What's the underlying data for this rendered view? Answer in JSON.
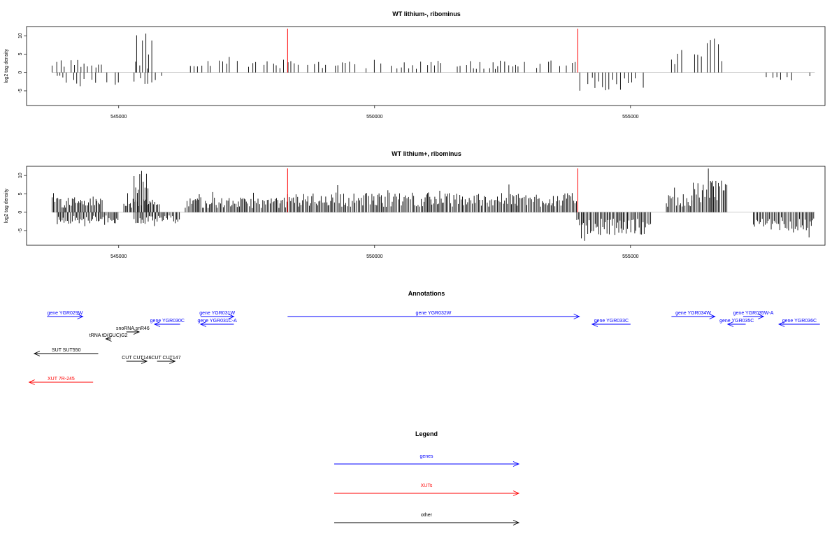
{
  "chart_data": [
    {
      "type": "bar",
      "title": "WT lithium-, ribominus",
      "ylabel": "log2 tag density",
      "xlim": [
        543200,
        558800
      ],
      "ylim": [
        -9,
        12.5
      ],
      "x_ticks": [
        545000,
        550000,
        555000
      ],
      "x_tick_labels": [
        "545000",
        "550000",
        "555000"
      ],
      "y_ticks": [
        -5,
        0,
        5,
        10
      ],
      "y_tick_labels": [
        "-5",
        "0",
        "5",
        "10"
      ],
      "markers": [
        548300,
        553970
      ],
      "marker_color": "#ff0000",
      "bar_color": "#000000",
      "segments": [
        {
          "start": 543700,
          "end": 544700,
          "level": 3,
          "strand": "plus"
        },
        {
          "start": 543800,
          "end": 545000,
          "level": 2.5,
          "strand": "minus"
        },
        {
          "start": 545350,
          "end": 545650,
          "level": 9,
          "strand": "plus"
        },
        {
          "start": 545200,
          "end": 545700,
          "level": 3,
          "strand": "plus"
        },
        {
          "start": 545300,
          "end": 545900,
          "level": 2.5,
          "strand": "minus"
        },
        {
          "start": 546400,
          "end": 553950,
          "level": 2.6,
          "strand": "plus"
        },
        {
          "start": 553950,
          "end": 555300,
          "level": 4,
          "strand": "minus"
        },
        {
          "start": 555800,
          "end": 556100,
          "level": 5,
          "strand": "plus"
        },
        {
          "start": 556200,
          "end": 556850,
          "level": 8,
          "strand": "plus"
        },
        {
          "start": 557500,
          "end": 558600,
          "level": 2.5,
          "strand": "minus"
        }
      ]
    },
    {
      "type": "bar",
      "title": "WT lithium+, ribominus",
      "ylabel": "log2 tag density",
      "xlim": [
        543200,
        558800
      ],
      "ylim": [
        -9,
        12.5
      ],
      "x_ticks": [
        545000,
        550000,
        555000
      ],
      "x_tick_labels": [
        "545000",
        "550000",
        "555000"
      ],
      "y_ticks": [
        -5,
        0,
        5,
        10
      ],
      "y_tick_labels": [
        "-5",
        "0",
        "5",
        "10"
      ],
      "markers": [
        548300,
        553970
      ],
      "marker_color": "#ff0000",
      "bar_color": "#000000",
      "segments": [
        {
          "start": 543700,
          "end": 544700,
          "level": 3.5,
          "strand": "plus"
        },
        {
          "start": 543800,
          "end": 545000,
          "level": 2.5,
          "strand": "minus"
        },
        {
          "start": 545300,
          "end": 545600,
          "level": 9,
          "strand": "plus"
        },
        {
          "start": 545100,
          "end": 545800,
          "level": 3,
          "strand": "plus"
        },
        {
          "start": 545300,
          "end": 546200,
          "level": 2.5,
          "strand": "minus"
        },
        {
          "start": 546300,
          "end": 548300,
          "level": 3.2,
          "strand": "plus"
        },
        {
          "start": 548300,
          "end": 553950,
          "level": 4.2,
          "strand": "plus"
        },
        {
          "start": 553950,
          "end": 555400,
          "level": 5,
          "strand": "minus"
        },
        {
          "start": 555700,
          "end": 556200,
          "level": 4,
          "strand": "plus"
        },
        {
          "start": 556200,
          "end": 556900,
          "level": 7,
          "strand": "plus"
        },
        {
          "start": 557400,
          "end": 558600,
          "level": 4,
          "strand": "minus"
        }
      ]
    }
  ],
  "annotations": {
    "title": "Annotations",
    "colors": {
      "genes": "#0000ff",
      "XUTs": "#ff0000",
      "other": "#000000"
    },
    "features": [
      {
        "label": "gene YGR029W",
        "start": 543600,
        "end": 544300,
        "row": 0,
        "strand": "plus",
        "kind": "genes"
      },
      {
        "label": "gene YGR030C",
        "start": 545700,
        "end": 546200,
        "row": 1,
        "strand": "minus",
        "kind": "genes"
      },
      {
        "label": "gene YGR031W",
        "start": 546600,
        "end": 547250,
        "row": 0,
        "strand": "plus",
        "kind": "genes"
      },
      {
        "label": "gene YGR031C-A",
        "start": 546600,
        "end": 547250,
        "row": 1,
        "strand": "minus",
        "kind": "genes"
      },
      {
        "label": "gene YGR032W",
        "start": 548300,
        "end": 554000,
        "row": 0,
        "strand": "plus",
        "kind": "genes"
      },
      {
        "label": "gene YGR033C",
        "start": 554250,
        "end": 555000,
        "row": 1,
        "strand": "minus",
        "kind": "genes"
      },
      {
        "label": "gene YGR034W",
        "start": 555800,
        "end": 556650,
        "row": 0,
        "strand": "plus",
        "kind": "genes"
      },
      {
        "label": "gene YGR035C",
        "start": 556900,
        "end": 557250,
        "row": 1,
        "strand": "minus",
        "kind": "genes"
      },
      {
        "label": "gene YGR035W-A",
        "start": 557200,
        "end": 557600,
        "row": 0,
        "strand": "plus",
        "kind": "genes"
      },
      {
        "label": "gene YGR036C",
        "start": 557900,
        "end": 558700,
        "row": 1,
        "strand": "minus",
        "kind": "genes"
      },
      {
        "label": "tRNA tD(GUC)G2",
        "start": 544750,
        "end": 544850,
        "row": 2,
        "strand": "minus",
        "kind": "other"
      },
      {
        "label": "snoRNA snR46",
        "start": 545150,
        "end": 545400,
        "row": 3,
        "strand": "plus",
        "kind": "other"
      },
      {
        "label": "SUT SUT550",
        "start": 543350,
        "end": 544600,
        "row": 4,
        "strand": "minus",
        "kind": "other"
      },
      {
        "label": "CUT CUT146",
        "start": 545150,
        "end": 545550,
        "row": 5,
        "strand": "plus",
        "kind": "other"
      },
      {
        "label": "CUT CUT147",
        "start": 545750,
        "end": 546100,
        "row": 5,
        "strand": "plus",
        "kind": "other"
      },
      {
        "label": "XUT 7R-245",
        "start": 543250,
        "end": 544500,
        "row": 6,
        "strand": "minus",
        "kind": "XUTs"
      }
    ]
  },
  "legend": {
    "title": "Legend",
    "entries": [
      {
        "label": "genes",
        "color": "#0000ff"
      },
      {
        "label": "XUTs",
        "color": "#ff0000"
      },
      {
        "label": "other",
        "color": "#000000"
      }
    ]
  }
}
